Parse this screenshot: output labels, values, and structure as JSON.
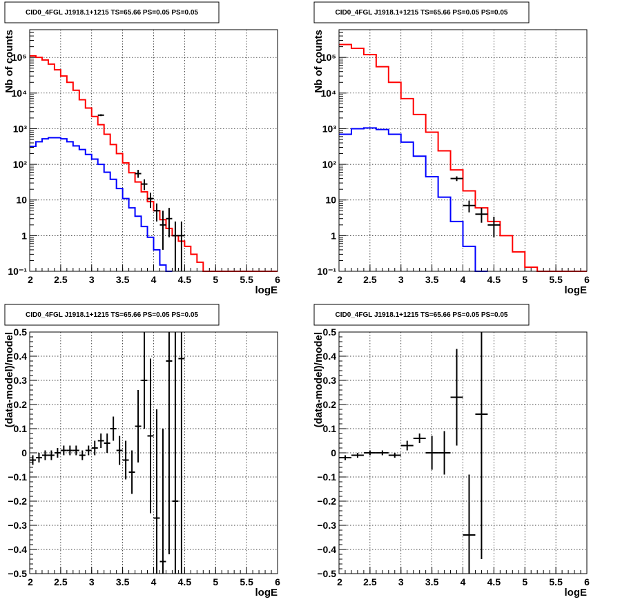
{
  "chart_data": [
    {
      "type": "step-histogram",
      "title": "CID0_4FGL J1918.1+1215 TS=65.66 PS=0.05 PS=0.05",
      "xlabel": "logE",
      "ylabel": "Nb of counts",
      "xlim": [
        2,
        6
      ],
      "ylim": [
        0.1,
        600000
      ],
      "yscale": "log",
      "grid": true,
      "x_ticks": [
        "2",
        "2.5",
        "3",
        "3.5",
        "4",
        "4.5",
        "5",
        "5.5",
        "6"
      ],
      "y_ticks": [
        "10⁻¹",
        "1",
        "10",
        "10²",
        "10³",
        "10⁴",
        "10⁵"
      ],
      "bin_width": 0.1,
      "series": [
        {
          "color": "#ff0000",
          "bin_starts": [
            2.0,
            2.1,
            2.2,
            2.3,
            2.4,
            2.5,
            2.6,
            2.7,
            2.8,
            2.9,
            3.0,
            3.1,
            3.2,
            3.3,
            3.4,
            3.5,
            3.6,
            3.7,
            3.8,
            3.9,
            4.0,
            4.1,
            4.2,
            4.3,
            4.4,
            4.5,
            4.6,
            4.7,
            4.8,
            4.9,
            5.0,
            5.1,
            5.2,
            5.3,
            5.4,
            5.5,
            5.6,
            5.7,
            5.8,
            5.9
          ],
          "values": [
            110000,
            100000,
            85000,
            65000,
            45000,
            30000,
            20000,
            12000,
            6500,
            3800,
            2200,
            1300,
            700,
            360,
            200,
            110,
            58,
            32,
            17,
            9,
            5,
            2.8,
            1.6,
            1.0,
            0.7,
            0.5,
            0.3,
            0.18,
            0.1,
            0.1,
            0.1,
            0.1,
            0.1,
            0.1,
            0.1,
            0.1,
            0.1,
            0.1,
            0.1,
            0.1
          ]
        },
        {
          "color": "#0000ff",
          "bin_starts": [
            2.0,
            2.1,
            2.2,
            2.3,
            2.4,
            2.5,
            2.6,
            2.7,
            2.8,
            2.9,
            3.0,
            3.1,
            3.2,
            3.3,
            3.4,
            3.5,
            3.6,
            3.7,
            3.8,
            3.9,
            4.0,
            4.1,
            4.2
          ],
          "values": [
            320,
            430,
            520,
            560,
            560,
            520,
            430,
            330,
            260,
            190,
            140,
            100,
            60,
            38,
            21,
            11,
            6,
            3.5,
            1.8,
            0.9,
            0.4,
            0.15,
            0.1
          ]
        }
      ],
      "points": {
        "color": "#000000",
        "x": [
          3.15,
          3.75,
          3.85,
          3.95,
          4.05,
          4.15,
          4.25,
          4.35,
          4.45
        ],
        "y": [
          2400,
          55,
          28,
          11,
          5,
          2,
          3,
          1,
          1
        ],
        "y_low": [
          2250,
          42,
          19,
          6,
          2.5,
          0.4,
          0.9,
          0.1,
          0.1
        ],
        "y_high": [
          2550,
          70,
          38,
          16,
          8,
          5,
          6,
          2.5,
          2.5
        ],
        "x_err": 0.05
      }
    },
    {
      "type": "step-histogram",
      "title": "CID0_4FGL J1918.1+1215 TS=65.66 PS=0.05 PS=0.05",
      "xlabel": "logE",
      "ylabel": "Nb of counts",
      "xlim": [
        2,
        6
      ],
      "ylim": [
        0.1,
        600000
      ],
      "yscale": "log",
      "grid": true,
      "x_ticks": [
        "2",
        "2.5",
        "3",
        "3.5",
        "4",
        "4.5",
        "5",
        "5.5",
        "6"
      ],
      "y_ticks": [
        "10⁻¹",
        "1",
        "10",
        "10²",
        "10³",
        "10⁴",
        "10⁵"
      ],
      "bin_width": 0.2,
      "series": [
        {
          "color": "#ff0000",
          "bin_starts": [
            2.0,
            2.2,
            2.4,
            2.6,
            2.8,
            3.0,
            3.2,
            3.4,
            3.6,
            3.8,
            4.0,
            4.2,
            4.4,
            4.6,
            4.8,
            5.0,
            5.2,
            5.4,
            5.6,
            5.8
          ],
          "values": [
            230000,
            180000,
            120000,
            55000,
            20000,
            7000,
            2500,
            800,
            240,
            70,
            18,
            6,
            2.5,
            1.0,
            0.35,
            0.13,
            0.1,
            0.1,
            0.1,
            0.1
          ]
        },
        {
          "color": "#0000ff",
          "bin_starts": [
            2.0,
            2.2,
            2.4,
            2.6,
            2.8,
            3.0,
            3.2,
            3.4,
            3.6,
            3.8,
            4.0,
            4.2
          ],
          "values": [
            700,
            1000,
            1050,
            950,
            700,
            420,
            170,
            45,
            12,
            2.5,
            0.5,
            0.1
          ]
        }
      ],
      "points": {
        "color": "#000000",
        "x": [
          3.9,
          4.1,
          4.3,
          4.5
        ],
        "y": [
          40,
          7,
          4,
          2
        ],
        "y_low": [
          34,
          4.5,
          2.3,
          0.9
        ],
        "y_high": [
          46,
          9.6,
          6,
          3.4
        ],
        "x_err": 0.1
      }
    },
    {
      "type": "scatter-errorbars",
      "title": "CID0_4FGL J1918.1+1215 TS=65.66 PS=0.05 PS=0.05",
      "xlabel": "logE",
      "ylabel": "(data-model)/model",
      "xlim": [
        2,
        6
      ],
      "ylim": [
        -0.5,
        0.5
      ],
      "grid": true,
      "x_ticks": [
        "2",
        "2.5",
        "3",
        "3.5",
        "4",
        "4.5",
        "5",
        "5.5",
        "6"
      ],
      "y_ticks": [
        "−0.5",
        "−0.4",
        "−0.3",
        "−0.2",
        "−0.1",
        "0",
        "0.1",
        "0.2",
        "0.3",
        "0.4",
        "0.5"
      ],
      "x_err": 0.05,
      "points": {
        "x": [
          2.05,
          2.15,
          2.25,
          2.35,
          2.45,
          2.55,
          2.65,
          2.75,
          2.85,
          2.95,
          3.05,
          3.15,
          3.25,
          3.35,
          3.45,
          3.55,
          3.65,
          3.75,
          3.85,
          3.95,
          4.05,
          4.15,
          4.25,
          4.35,
          4.45
        ],
        "y": [
          -0.03,
          -0.02,
          -0.01,
          -0.01,
          0.0,
          0.01,
          0.01,
          0.01,
          -0.01,
          0.01,
          0.02,
          0.05,
          0.04,
          0.1,
          0.01,
          -0.03,
          -0.08,
          0.11,
          0.3,
          0.07,
          -0.27,
          -0.45,
          0.38,
          -0.2,
          0.39
        ],
        "y_err": [
          0.02,
          0.02,
          0.02,
          0.02,
          0.02,
          0.02,
          0.02,
          0.02,
          0.02,
          0.02,
          0.03,
          0.03,
          0.04,
          0.05,
          0.06,
          0.08,
          0.09,
          0.15,
          0.2,
          0.32,
          0.45,
          0.55,
          0.8,
          1.0,
          1.2
        ]
      }
    },
    {
      "type": "scatter-errorbars",
      "title": "CID0_4FGL J1918.1+1215 TS=65.66 PS=0.05 PS=0.05",
      "xlabel": "logE",
      "ylabel": "(data-model)/model",
      "xlim": [
        2,
        6
      ],
      "ylim": [
        -0.5,
        0.5
      ],
      "grid": true,
      "x_ticks": [
        "2",
        "2.5",
        "3",
        "3.5",
        "4",
        "4.5",
        "5",
        "5.5",
        "6"
      ],
      "y_ticks": [
        "−0.5",
        "−0.4",
        "−0.3",
        "−0.2",
        "−0.1",
        "0",
        "0.1",
        "0.2",
        "0.3",
        "0.4",
        "0.5"
      ],
      "x_err": 0.1,
      "points": {
        "x": [
          2.1,
          2.3,
          2.5,
          2.7,
          2.9,
          3.1,
          3.3,
          3.5,
          3.7,
          3.9,
          4.1,
          4.3
        ],
        "y": [
          -0.02,
          -0.01,
          0.0,
          0.0,
          -0.01,
          0.03,
          0.06,
          0.0,
          0.0,
          0.23,
          -0.34,
          0.16
        ],
        "y_err": [
          0.01,
          0.01,
          0.01,
          0.01,
          0.01,
          0.02,
          0.02,
          0.07,
          0.09,
          0.2,
          0.25,
          0.6
        ]
      }
    }
  ]
}
